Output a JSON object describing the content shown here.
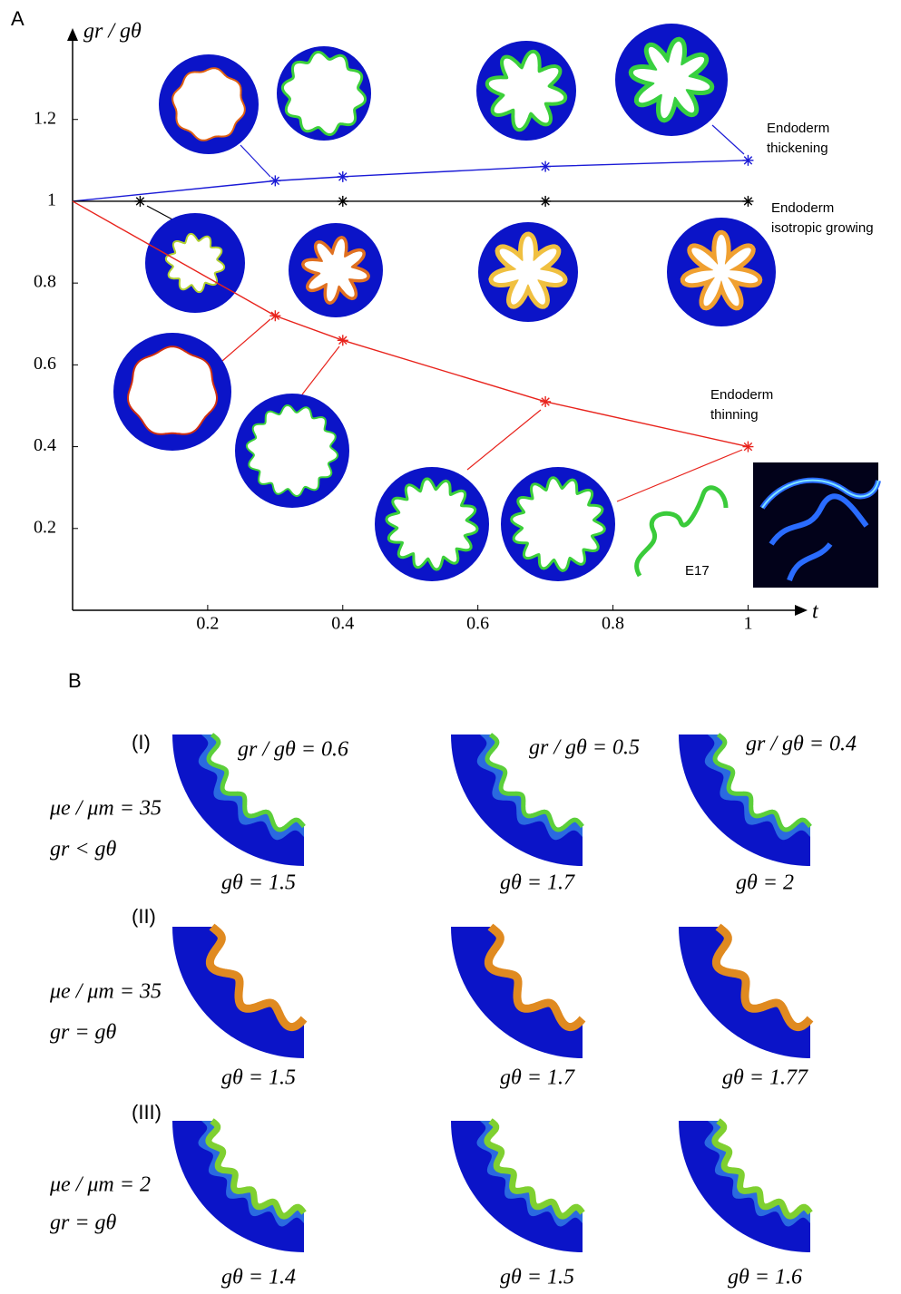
{
  "panel_a": {
    "label": "A",
    "inset_label": "E17"
  },
  "chart_data": {
    "type": "line",
    "y_label": "gr / gθ",
    "x_label": "t",
    "xlim": [
      0,
      1.08
    ],
    "ylim": [
      0,
      1.41
    ],
    "xticks": [
      0.2,
      0.4,
      0.6,
      0.8,
      1
    ],
    "yticks": [
      0.2,
      0.4,
      0.6,
      0.8,
      1,
      1.2
    ],
    "series": [
      {
        "color": "#1a1ad6",
        "x": [
          0,
          0.3,
          0.4,
          0.7,
          1
        ],
        "values": [
          1,
          1.05,
          1.06,
          1.085,
          1.1
        ],
        "label_lines": [
          "Endoderm",
          "thickening"
        ]
      },
      {
        "color": "#000000",
        "x": [
          0,
          0.1,
          0.4,
          0.7,
          1
        ],
        "values": [
          1,
          1,
          1,
          1,
          1
        ],
        "label_lines": [
          "Endoderm",
          "isotropic growing"
        ]
      },
      {
        "color": "#e8231c",
        "x": [
          0,
          0.3,
          0.4,
          0.7,
          1
        ],
        "values": [
          1,
          0.72,
          0.66,
          0.51,
          0.4
        ],
        "label_lines": [
          "Endoderm",
          "thinning"
        ]
      }
    ]
  },
  "panel_b": {
    "label": "B",
    "rows": [
      {
        "id": "(I)",
        "params": [
          "μe / μm = 35",
          "gr < gθ"
        ],
        "ratios": [
          "gr / gθ = 0.6",
          "gr / gθ = 0.5",
          "gr / gθ = 0.4"
        ],
        "captions": [
          "gθ = 1.5",
          "gθ = 1.7",
          "gθ = 2"
        ]
      },
      {
        "id": "(II)",
        "params": [
          "μe / μm = 35",
          "gr = gθ"
        ],
        "captions": [
          "gθ = 1.5",
          "gθ = 1.7",
          "gθ = 1.77"
        ]
      },
      {
        "id": "(III)",
        "params": [
          "μe / μm = 2",
          "gr = gθ"
        ],
        "captions": [
          "gθ = 1.4",
          "gθ = 1.5",
          "gθ = 1.6"
        ]
      }
    ]
  }
}
